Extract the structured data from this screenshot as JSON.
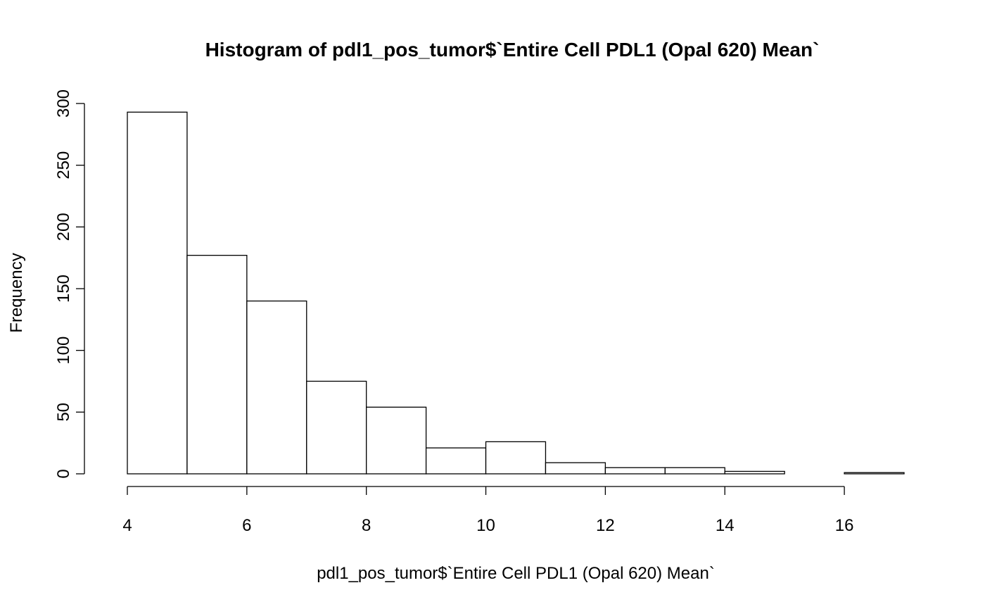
{
  "chart_data": {
    "type": "bar",
    "title": "Histogram of pdl1_pos_tumor$`Entire Cell PDL1 (Opal 620) Mean`",
    "xlabel": "pdl1_pos_tumor$`Entire Cell PDL1 (Opal 620) Mean`",
    "ylabel": "Frequency",
    "bins": [
      {
        "start": 4,
        "end": 5,
        "count": 293
      },
      {
        "start": 5,
        "end": 6,
        "count": 177
      },
      {
        "start": 6,
        "end": 7,
        "count": 140
      },
      {
        "start": 7,
        "end": 8,
        "count": 75
      },
      {
        "start": 8,
        "end": 9,
        "count": 54
      },
      {
        "start": 9,
        "end": 10,
        "count": 21
      },
      {
        "start": 10,
        "end": 11,
        "count": 26
      },
      {
        "start": 11,
        "end": 12,
        "count": 9
      },
      {
        "start": 12,
        "end": 13,
        "count": 5
      },
      {
        "start": 13,
        "end": 14,
        "count": 5
      },
      {
        "start": 14,
        "end": 15,
        "count": 2
      },
      {
        "start": 15,
        "end": 16,
        "count": 0
      },
      {
        "start": 16,
        "end": 17,
        "count": 1
      }
    ],
    "xlim": [
      4,
      17
    ],
    "ylim": [
      0,
      300
    ],
    "x_ticks": [
      "4",
      "6",
      "8",
      "10",
      "12",
      "14",
      "16"
    ],
    "y_ticks": [
      "0",
      "50",
      "100",
      "150",
      "200",
      "250",
      "300"
    ],
    "grid": false,
    "legend": "none",
    "bar_fill": "#ffffff",
    "bar_stroke": "#000000"
  }
}
